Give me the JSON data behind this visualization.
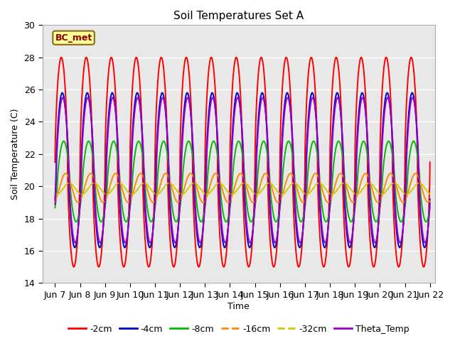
{
  "title": "Soil Temperatures Set A",
  "xlabel": "Time",
  "ylabel": "Soil Temperature (C)",
  "ylim": [
    14,
    30
  ],
  "xlim_days": [
    6.5,
    22.2
  ],
  "background_color": "#e8e8e8",
  "annotation_text": "BC_met",
  "annotation_box_color": "#ffff99",
  "annotation_border_color": "#8b6914",
  "annotation_text_color": "#8b0000",
  "series": [
    {
      "label": "-2cm",
      "color": "#ff0000",
      "amplitude": 6.5,
      "phase": 0.0,
      "mean": 21.5,
      "power": 0.6
    },
    {
      "label": "-4cm",
      "color": "#0000cc",
      "amplitude": 4.8,
      "phase": 0.25,
      "mean": 21.0,
      "power": 0.7
    },
    {
      "label": "-8cm",
      "color": "#00bb00",
      "amplitude": 2.5,
      "phase": 0.6,
      "mean": 20.3,
      "power": 0.75
    },
    {
      "label": "-16cm",
      "color": "#ff8800",
      "amplitude": 0.9,
      "phase": 1.1,
      "mean": 19.9,
      "power": 1.0
    },
    {
      "label": "-32cm",
      "color": "#cccc00",
      "amplitude": 0.35,
      "phase": 2.0,
      "mean": 19.85,
      "power": 1.0
    },
    {
      "label": "Theta_Temp",
      "color": "#9900cc",
      "amplitude": 4.5,
      "phase": 0.35,
      "mean": 21.0,
      "power": 0.7
    }
  ],
  "xtick_labels": [
    "Jun 7",
    "Jun 8",
    "Jun 9",
    "Jun 10",
    "Jun 11",
    "Jun 12",
    "Jun 13",
    "Jun 14",
    "Jun 15",
    "Jun 16",
    "Jun 17",
    "Jun 18",
    "Jun 19",
    "Jun 20",
    "Jun 21",
    "Jun 22"
  ],
  "xtick_positions": [
    7,
    8,
    9,
    10,
    11,
    12,
    13,
    14,
    15,
    16,
    17,
    18,
    19,
    20,
    21,
    22
  ],
  "legend_ncol": 6,
  "grid_color": "#ffffff",
  "linewidth": 1.4
}
